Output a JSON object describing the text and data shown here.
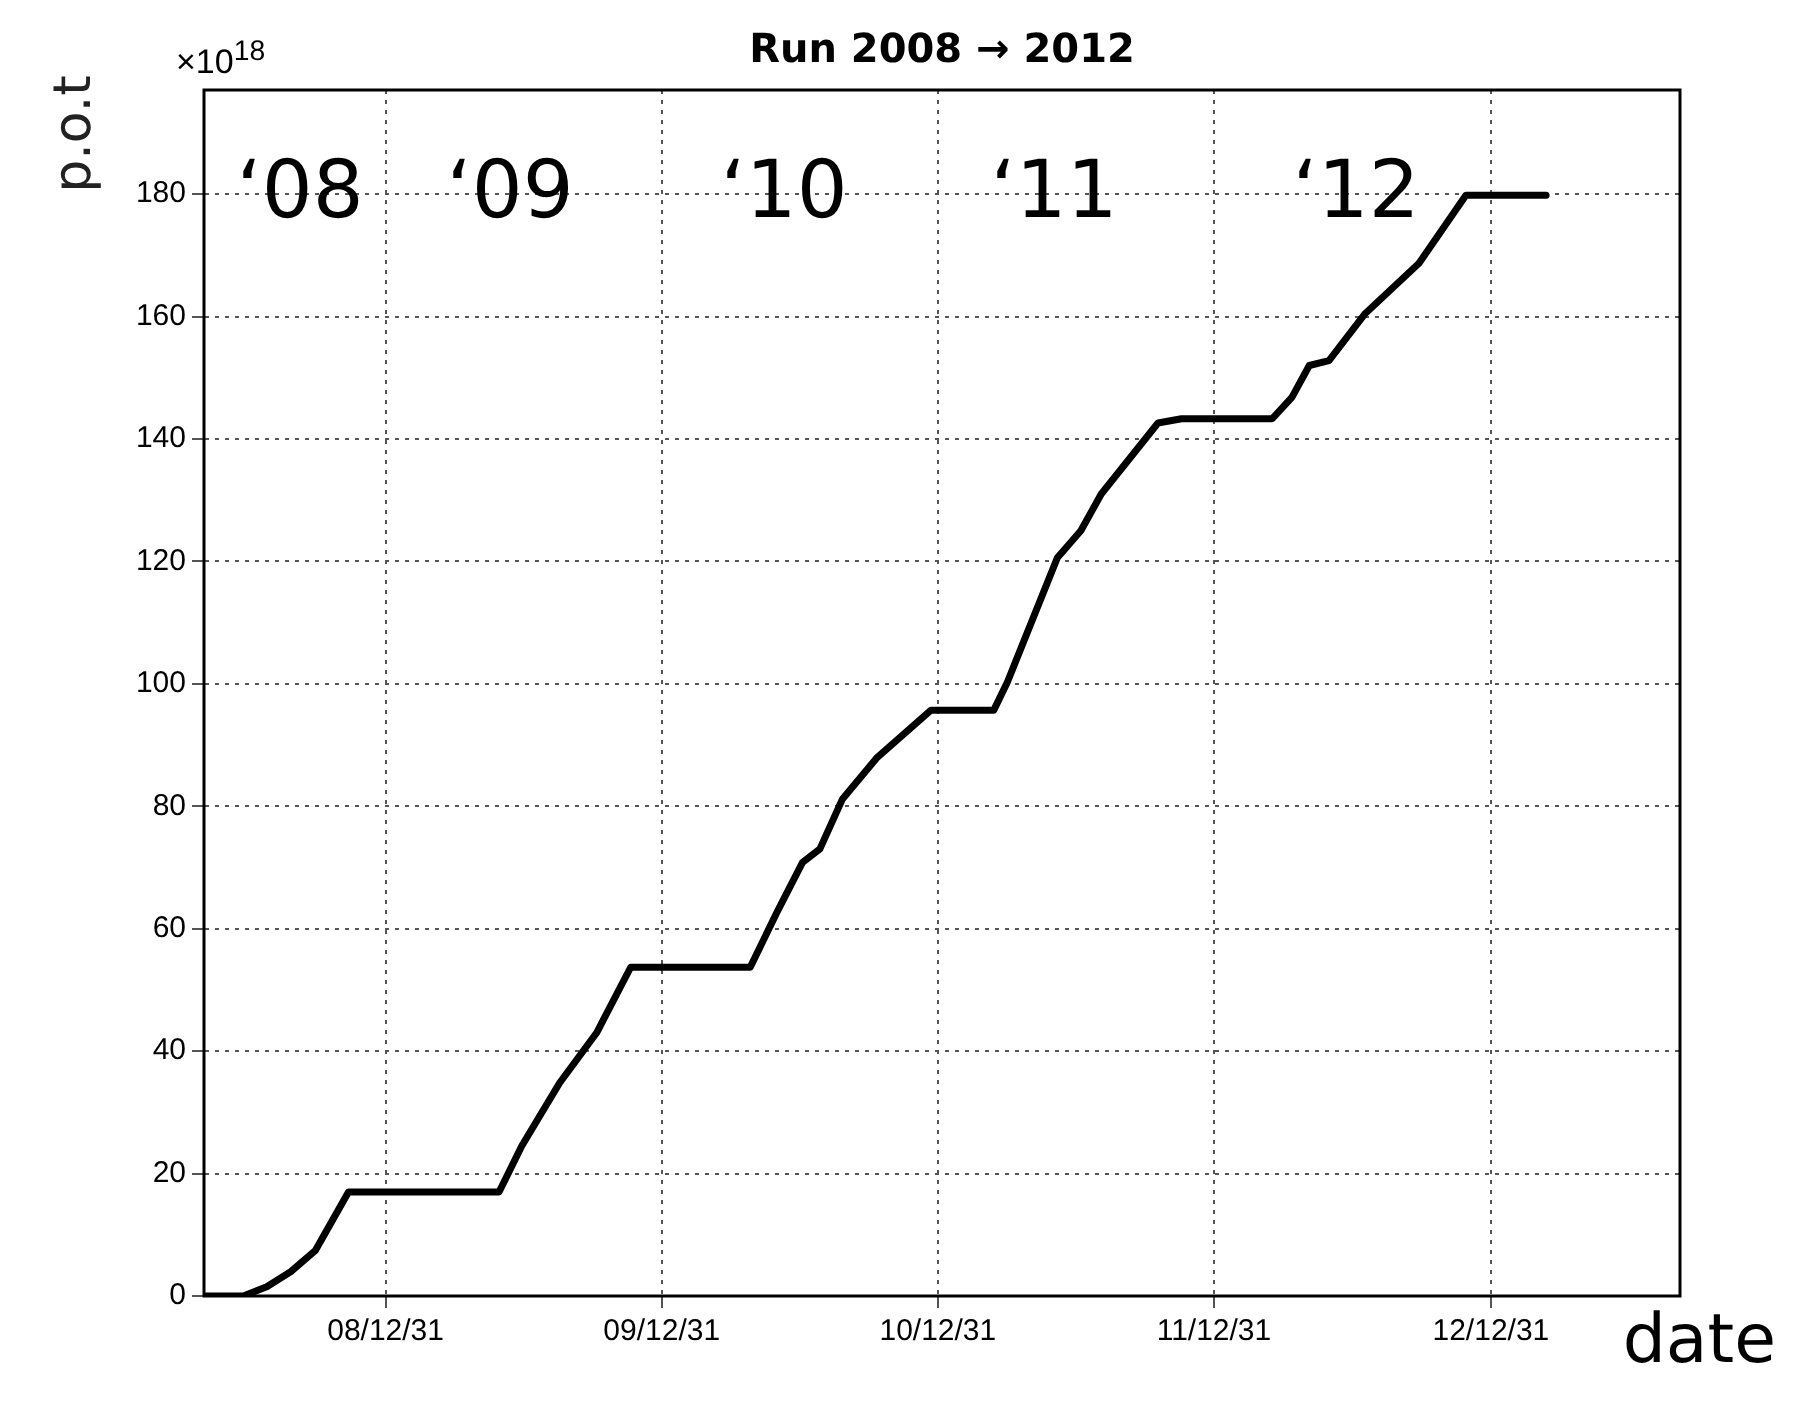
{
  "chart_data": {
    "type": "line",
    "title": "Run 2008 → 2012",
    "xlabel": "date",
    "ylabel": "p.o.t",
    "annotations": [
      "×10$^{18}$",
      "‘08",
      "‘09",
      "‘10",
      "‘11",
      "‘12"
    ],
    "series": [
      {
        "color": "#000000",
        "x": [
          "2008-05-05",
          "2008-06-26",
          "2008-07-27",
          "2008-08-28",
          "2008-09-29",
          "2008-11-12",
          "2009-05-30",
          "2009-06-29",
          "2009-08-18",
          "2009-10-06",
          "2009-11-20",
          "2010-04-27",
          "2010-06-01",
          "2010-07-05",
          "2010-07-28",
          "2010-08-27",
          "2010-10-12",
          "2010-12-22",
          "2011-03-15",
          "2011-04-02",
          "2011-06-07",
          "2011-07-08",
          "2011-08-04",
          "2011-10-18",
          "2011-11-18",
          "2012-03-17",
          "2012-04-12",
          "2012-05-05",
          "2012-05-31",
          "2012-07-18",
          "2012-09-27",
          "2012-11-28",
          "2013-03-14"
        ],
        "values": [
          0,
          0,
          1.5,
          4,
          7.4,
          17,
          17,
          24.5,
          34.8,
          43,
          53.7,
          53.7,
          62.6,
          70.8,
          73,
          81.2,
          88,
          95.7,
          95.7,
          100.3,
          120.6,
          125,
          131,
          142.6,
          143.3,
          143.3,
          146.8,
          152,
          152.8,
          160.5,
          168.7,
          179.8,
          179.8
        ]
      }
    ],
    "xlim": [
      "2008-05-05",
      "2013-09-07"
    ],
    "xticks": [
      {
        "value": "2008-12-31",
        "label": "08/12/31"
      },
      {
        "value": "2009-12-31",
        "label": "09/12/31"
      },
      {
        "value": "2010-12-31",
        "label": "10/12/31"
      },
      {
        "value": "2011-12-31",
        "label": "11/12/31"
      },
      {
        "value": "2012-12-31",
        "label": "12/12/31"
      }
    ],
    "ylim": [
      0,
      197
    ],
    "yticks": [
      0,
      20,
      40,
      60,
      80,
      100,
      120,
      140,
      160,
      180
    ],
    "grid": true,
    "legend": false,
    "marker": "none",
    "line_style": "solid"
  }
}
